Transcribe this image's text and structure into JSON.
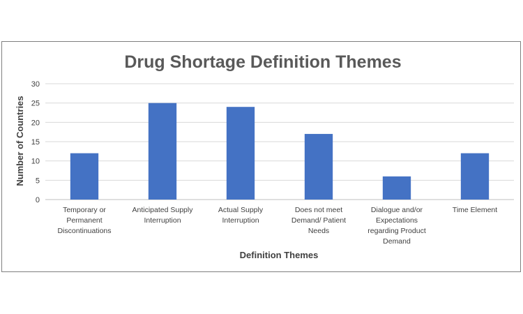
{
  "chart_data": {
    "type": "bar",
    "title": "Drug Shortage Definition Themes",
    "xlabel": "Definition Themes",
    "ylabel": "Number of Countries",
    "ylim": [
      0,
      30
    ],
    "yticks": [
      0,
      5,
      10,
      15,
      20,
      25,
      30
    ],
    "grid": true,
    "legend": "none",
    "bar_color": "#4472C4",
    "categories": [
      "Temporary or Permanent Discontinuations",
      "Anticipated Supply Interruption",
      "Actual Supply Interruption",
      "Does not meet Demand/ Patient Needs",
      "Dialogue and/or Expectations regarding Product Demand",
      "Time Element"
    ],
    "category_lines": [
      [
        "Temporary or",
        "Permanent",
        "Discontinuations"
      ],
      [
        "Anticipated Supply",
        "Interruption"
      ],
      [
        "Actual Supply",
        "Interruption"
      ],
      [
        "Does not meet",
        "Demand/ Patient",
        "Needs"
      ],
      [
        "Dialogue and/or",
        "Expectations",
        "regarding Product",
        "Demand"
      ],
      [
        "Time Element"
      ]
    ],
    "values": [
      12,
      25,
      24,
      17,
      6,
      12
    ]
  }
}
